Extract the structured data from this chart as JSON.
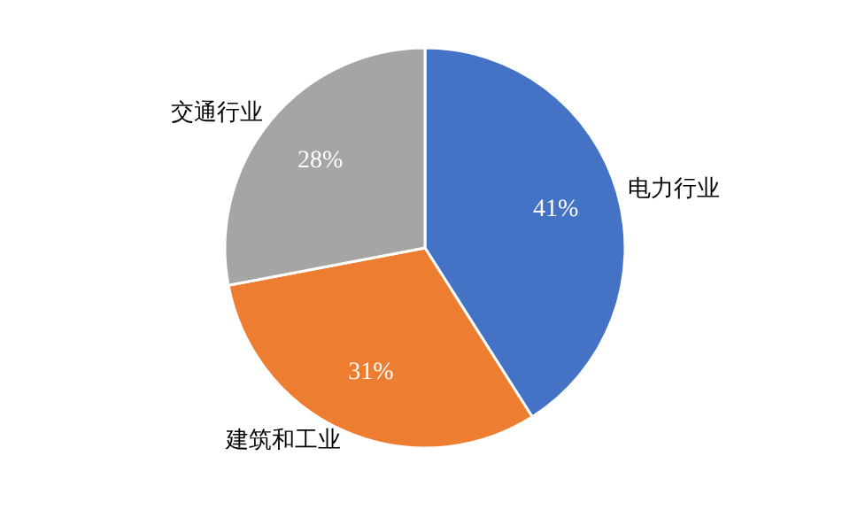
{
  "chart_data": {
    "type": "pie",
    "categories": [
      "电力行业",
      "建筑和工业",
      "交通行业"
    ],
    "values": [
      41,
      31,
      28
    ],
    "colors": [
      "#4472c4",
      "#ed7d31",
      "#a5a5a5"
    ],
    "value_labels": [
      "41%",
      "31%",
      "28%"
    ],
    "legend": false
  }
}
